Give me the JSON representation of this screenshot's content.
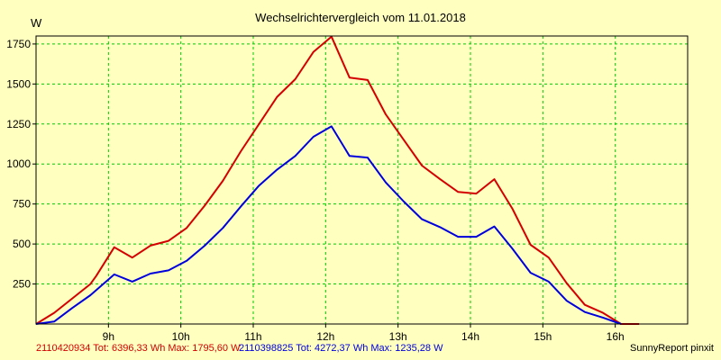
{
  "chart_data": {
    "type": "line",
    "title": "Wechselrichtervergleich vom 11.01.2018",
    "ylabel": "W",
    "xlabel": "",
    "xlim": [
      8.0,
      17.0
    ],
    "ylim": [
      0,
      1800
    ],
    "grid": true,
    "x_ticks": [
      {
        "value": 9,
        "label": "9h"
      },
      {
        "value": 10,
        "label": "10h"
      },
      {
        "value": 11,
        "label": "11h"
      },
      {
        "value": 12,
        "label": "12h"
      },
      {
        "value": 13,
        "label": "13h"
      },
      {
        "value": 14,
        "label": "14h"
      },
      {
        "value": 15,
        "label": "15h"
      },
      {
        "value": 16,
        "label": "16h"
      }
    ],
    "y_ticks": [
      {
        "value": 250,
        "label": "250"
      },
      {
        "value": 500,
        "label": "500"
      },
      {
        "value": 750,
        "label": "750"
      },
      {
        "value": 1000,
        "label": "1000"
      },
      {
        "value": 1250,
        "label": "1250"
      },
      {
        "value": 1500,
        "label": "1500"
      },
      {
        "value": 1750,
        "label": "1750"
      }
    ],
    "series": [
      {
        "color": "#d40000",
        "points": [
          [
            8.0,
            0
          ],
          [
            8.25,
            70
          ],
          [
            8.5,
            160
          ],
          [
            8.75,
            250
          ],
          [
            8.83,
            300
          ],
          [
            9.08,
            480
          ],
          [
            9.33,
            415
          ],
          [
            9.58,
            490
          ],
          [
            9.83,
            520
          ],
          [
            10.08,
            600
          ],
          [
            10.33,
            740
          ],
          [
            10.58,
            895
          ],
          [
            10.83,
            1080
          ],
          [
            11.08,
            1250
          ],
          [
            11.33,
            1420
          ],
          [
            11.58,
            1530
          ],
          [
            11.83,
            1700
          ],
          [
            12.08,
            1796
          ],
          [
            12.33,
            1540
          ],
          [
            12.58,
            1525
          ],
          [
            12.83,
            1310
          ],
          [
            13.08,
            1150
          ],
          [
            13.33,
            990
          ],
          [
            13.58,
            905
          ],
          [
            13.83,
            825
          ],
          [
            14.08,
            815
          ],
          [
            14.33,
            905
          ],
          [
            14.58,
            720
          ],
          [
            14.83,
            495
          ],
          [
            15.08,
            415
          ],
          [
            15.33,
            255
          ],
          [
            15.58,
            120
          ],
          [
            15.83,
            70
          ],
          [
            16.08,
            0
          ],
          [
            16.33,
            0
          ]
        ]
      },
      {
        "color": "#0000dd",
        "points": [
          [
            8.0,
            0
          ],
          [
            8.25,
            15
          ],
          [
            8.5,
            100
          ],
          [
            8.75,
            180
          ],
          [
            9.08,
            310
          ],
          [
            9.33,
            265
          ],
          [
            9.58,
            315
          ],
          [
            9.83,
            335
          ],
          [
            10.08,
            395
          ],
          [
            10.33,
            490
          ],
          [
            10.58,
            600
          ],
          [
            10.83,
            735
          ],
          [
            11.08,
            865
          ],
          [
            11.33,
            965
          ],
          [
            11.58,
            1050
          ],
          [
            11.83,
            1170
          ],
          [
            12.08,
            1235
          ],
          [
            12.33,
            1050
          ],
          [
            12.58,
            1040
          ],
          [
            12.83,
            885
          ],
          [
            13.08,
            765
          ],
          [
            13.33,
            655
          ],
          [
            13.58,
            605
          ],
          [
            13.83,
            545
          ],
          [
            14.08,
            545
          ],
          [
            14.33,
            610
          ],
          [
            14.58,
            470
          ],
          [
            14.83,
            320
          ],
          [
            15.08,
            265
          ],
          [
            15.33,
            145
          ],
          [
            15.58,
            75
          ],
          [
            15.83,
            40
          ],
          [
            16.08,
            0
          ]
        ]
      }
    ]
  },
  "legend": {
    "series1": "2110420934 Tot: 6396,33 Wh Max: 1795,60 W",
    "series2": "2110398825 Tot: 4272,37 Wh Max: 1235,28 W",
    "credit": "SunnyReport pinxit"
  },
  "colors": {
    "background": "#ffffc0",
    "grid": "#00cc00",
    "series1": "#d40000",
    "series2": "#0000dd"
  }
}
